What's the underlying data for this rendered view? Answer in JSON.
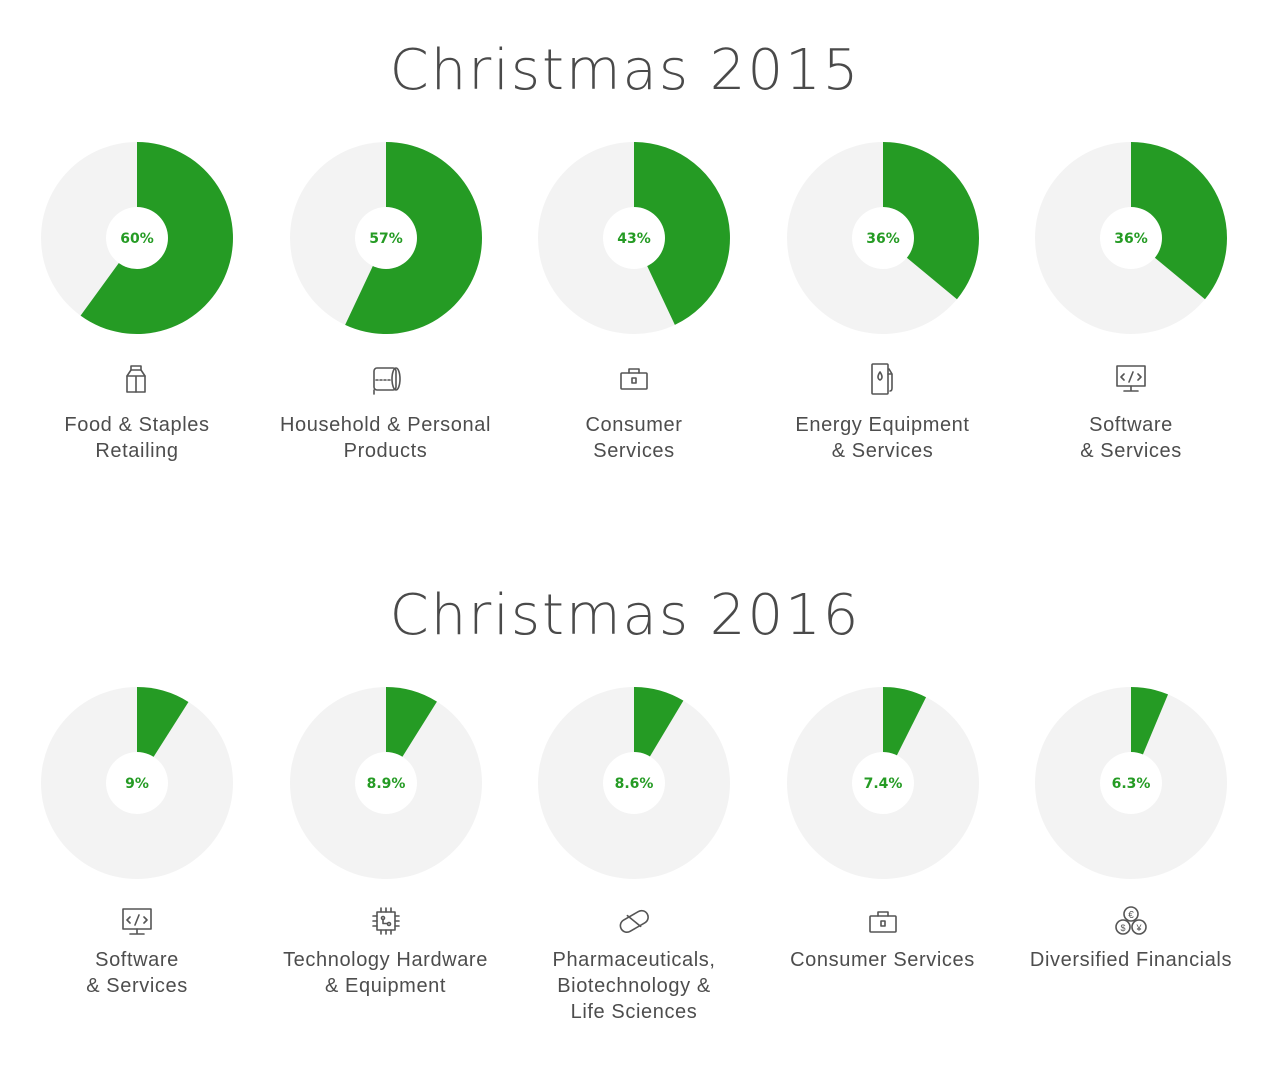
{
  "sections": [
    {
      "title": "Christmas 2015",
      "items": [
        {
          "value": 60,
          "label": "60%",
          "category": "Food & Staples\nRetailing",
          "icon": "milk-carton-icon"
        },
        {
          "value": 57,
          "label": "57%",
          "category": "Household & Personal\nProducts",
          "icon": "toilet-paper-icon"
        },
        {
          "value": 43,
          "label": "43%",
          "category": "Consumer\nServices",
          "icon": "briefcase-icon"
        },
        {
          "value": 36,
          "label": "36%",
          "category": "Energy Equipment\n& Services",
          "icon": "fuel-pump-icon"
        },
        {
          "value": 36,
          "label": "36%",
          "category": "Software\n& Services",
          "icon": "code-monitor-icon"
        }
      ]
    },
    {
      "title": "Christmas 2016",
      "items": [
        {
          "value": 9,
          "label": "9%",
          "category": "Software\n& Services",
          "icon": "code-monitor-icon"
        },
        {
          "value": 8.9,
          "label": "8.9%",
          "category": "Technology Hardware\n& Equipment",
          "icon": "chip-icon"
        },
        {
          "value": 8.6,
          "label": "8.6%",
          "category": "Pharmaceuticals,\nBiotechnology &\nLife Sciences",
          "icon": "pill-icon"
        },
        {
          "value": 7.4,
          "label": "7.4%",
          "category": "Consumer Services",
          "icon": "briefcase-icon"
        },
        {
          "value": 6.3,
          "label": "6.3%",
          "category": "Diversified Financials",
          "icon": "currency-coins-icon"
        }
      ]
    }
  ],
  "colors": {
    "fill": "#259b24",
    "track": "#f3f3f3",
    "hole": "#ffffff",
    "label": "#259b24",
    "icon": "#555555"
  },
  "chart_data": [
    {
      "type": "pie",
      "title": "Christmas 2015",
      "categories": [
        "Food & Staples Retailing",
        "Household & Personal Products",
        "Consumer Services",
        "Energy Equipment & Services",
        "Software & Services"
      ],
      "values": [
        60,
        57,
        43,
        36,
        36
      ]
    },
    {
      "type": "pie",
      "title": "Christmas 2016",
      "categories": [
        "Software & Services",
        "Technology Hardware & Equipment",
        "Pharmaceuticals, Biotechnology & Life Sciences",
        "Consumer Services",
        "Diversified Financials"
      ],
      "values": [
        9,
        8.9,
        8.6,
        7.4,
        6.3
      ]
    }
  ]
}
